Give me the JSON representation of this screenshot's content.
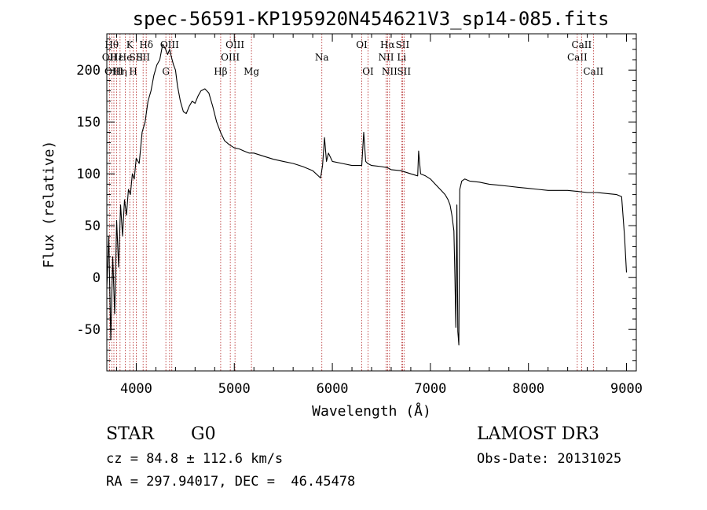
{
  "chart_data": {
    "type": "line",
    "title": "spec-56591-KP195920N454621V3_sp14-085.fits",
    "xlabel": "Wavelength (Å)",
    "ylabel": "Flux (relative)",
    "xlim": [
      3700,
      9100
    ],
    "ylim": [
      -90,
      235
    ],
    "x_ticks": [
      4000,
      5000,
      6000,
      7000,
      8000,
      9000
    ],
    "y_ticks": [
      -50,
      0,
      50,
      100,
      150,
      200
    ],
    "series": [
      {
        "name": "spectrum",
        "x": [
          3700,
          3720,
          3740,
          3760,
          3780,
          3800,
          3820,
          3840,
          3860,
          3880,
          3900,
          3920,
          3940,
          3960,
          3980,
          4000,
          4030,
          4060,
          4090,
          4120,
          4150,
          4180,
          4210,
          4240,
          4270,
          4300,
          4320,
          4340,
          4360,
          4380,
          4400,
          4420,
          4450,
          4480,
          4510,
          4540,
          4570,
          4600,
          4630,
          4660,
          4700,
          4740,
          4780,
          4820,
          4860,
          4900,
          4950,
          5000,
          5050,
          5100,
          5150,
          5200,
          5300,
          5400,
          5500,
          5600,
          5700,
          5800,
          5880,
          5900,
          5920,
          5940,
          5960,
          6000,
          6100,
          6200,
          6300,
          6320,
          6340,
          6360,
          6400,
          6500,
          6560,
          6600,
          6700,
          6800,
          6870,
          6880,
          6900,
          6950,
          7000,
          7050,
          7100,
          7150,
          7180,
          7200,
          7220,
          7240,
          7250,
          7260,
          7270,
          7280,
          7290,
          7300,
          7320,
          7350,
          7400,
          7500,
          7600,
          7700,
          7800,
          7900,
          8000,
          8100,
          8200,
          8300,
          8400,
          8500,
          8600,
          8700,
          8800,
          8900,
          8950,
          8980,
          9000
        ],
        "y": [
          -10,
          40,
          -60,
          20,
          -35,
          55,
          10,
          70,
          40,
          75,
          60,
          85,
          80,
          100,
          95,
          115,
          110,
          140,
          150,
          170,
          180,
          195,
          205,
          210,
          225,
          220,
          215,
          220,
          212,
          205,
          200,
          185,
          170,
          160,
          158,
          165,
          170,
          168,
          175,
          180,
          182,
          178,
          165,
          150,
          140,
          132,
          128,
          125,
          124,
          122,
          120,
          120,
          117,
          114,
          112,
          110,
          107,
          103,
          96,
          108,
          135,
          112,
          120,
          112,
          110,
          108,
          108,
          140,
          112,
          110,
          108,
          107,
          106,
          104,
          103,
          100,
          98,
          122,
          100,
          98,
          95,
          90,
          85,
          80,
          75,
          70,
          60,
          45,
          0,
          -48,
          70,
          -52,
          -65,
          85,
          93,
          95,
          93,
          92,
          90,
          89,
          88,
          87,
          86,
          85,
          84,
          84,
          84,
          83,
          82,
          82,
          81,
          80,
          78,
          40,
          5
        ]
      }
    ],
    "line_markers": [
      {
        "wavelength": 3750,
        "label": "Hθ",
        "row": 1
      },
      {
        "wavelength": 3727,
        "label": "OII",
        "row": 2
      },
      {
        "wavelength": 3772,
        "label": "OIII",
        "row": 3
      },
      {
        "wavelength": 3800,
        "label": "Hε",
        "row": 2
      },
      {
        "wavelength": 3835,
        "label": "Hη",
        "row": 3
      },
      {
        "wavelength": 3889,
        "label": "He",
        "row": 2
      },
      {
        "wavelength": 3934,
        "label": "K",
        "row": 1
      },
      {
        "wavelength": 3969,
        "label": "H",
        "row": 3
      },
      {
        "wavelength": 4000,
        "label": "SII",
        "row": 2
      },
      {
        "wavelength": 4102,
        "label": "Hδ",
        "row": 1
      },
      {
        "wavelength": 4070,
        "label": "SII",
        "row": 2
      },
      {
        "wavelength": 4302,
        "label": "G",
        "row": 3
      },
      {
        "wavelength": 4340,
        "label": "OIII",
        "row": 1
      },
      {
        "wavelength": 4363,
        "label": "",
        "row": 0
      },
      {
        "wavelength": 4861,
        "label": "Hβ",
        "row": 3
      },
      {
        "wavelength": 4959,
        "label": "OIII",
        "row": 2
      },
      {
        "wavelength": 5007,
        "label": "OIII",
        "row": 1
      },
      {
        "wavelength": 5175,
        "label": "Mg",
        "row": 3
      },
      {
        "wavelength": 5893,
        "label": "Na",
        "row": 2
      },
      {
        "wavelength": 6300,
        "label": "OI",
        "row": 1
      },
      {
        "wavelength": 6364,
        "label": "OI",
        "row": 3
      },
      {
        "wavelength": 6548,
        "label": "NII",
        "row": 2
      },
      {
        "wavelength": 6563,
        "label": "Hα",
        "row": 1
      },
      {
        "wavelength": 6583,
        "label": "NII",
        "row": 3
      },
      {
        "wavelength": 6707,
        "label": "Li",
        "row": 2
      },
      {
        "wavelength": 6716,
        "label": "SII",
        "row": 1
      },
      {
        "wavelength": 6731,
        "label": "SII",
        "row": 3
      },
      {
        "wavelength": 8498,
        "label": "CaII",
        "row": 2
      },
      {
        "wavelength": 8542,
        "label": "CaII",
        "row": 1
      },
      {
        "wavelength": 8662,
        "label": "CaII",
        "row": 3
      }
    ]
  },
  "info": {
    "class": "STAR",
    "subclass": "G0",
    "survey": "LAMOST DR3",
    "cz": "cz = 84.8 ± 112.6 km/s",
    "obs_date": "Obs-Date: 20131025",
    "coords": "RA = 297.94017, DEC =  46.45478"
  },
  "colors": {
    "spectrum": "#000000",
    "marker": "#b22222",
    "axes": "#000000"
  }
}
